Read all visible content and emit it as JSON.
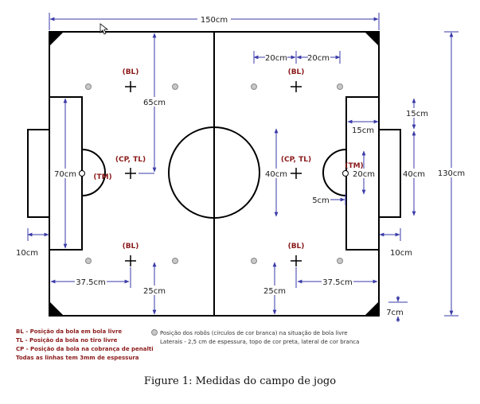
{
  "dimensions": {
    "total_length": "150cm",
    "total_width": "130cm",
    "spot_dist_1": "20cm",
    "spot_dist_2": "20cm",
    "bl_from_mid": "65cm",
    "goal_area_width": "70cm",
    "goal_area_depth": "15cm",
    "goal_depth": "15cm",
    "goal_width": "40cm",
    "circle_diameter": "40cm",
    "penalty_arc": "20cm",
    "tm_offset": "5cm",
    "goal_depth_left": "10cm",
    "goal_depth_right": "10cm",
    "spot_from_goal_left": "37.5cm",
    "spot_from_goal_right": "37.5cm",
    "bl_from_side_left": "25cm",
    "bl_from_side_right": "25cm",
    "corner_size": "7cm"
  },
  "markers": {
    "bl": "(BL)",
    "cp_tl": "(CP, TL)",
    "tm": "(TM)"
  },
  "legend": {
    "left": [
      "BL - Posição da bola em bola livre",
      "TL - Posição da bola no tiro livre",
      "CP - Posição da bola na cobrança de penalti",
      "Todas as linhas tem 3mm de espessura"
    ],
    "right": [
      "Posição dos robôs (círculos de cor branca) na situação de bola livre",
      "Laterais - 2,5 cm de espessura, topo de cor preta, lateral de cor branca"
    ]
  },
  "caption": "Figure 1: Medidas do campo de jogo",
  "colors": {
    "lines": "#000000",
    "dimension_lines": "#3a3aa8",
    "marker_text": "#8b1a1a",
    "robot_spot": "#c8c8c8"
  },
  "icons": {
    "cursor": "mouse-pointer-icon"
  }
}
